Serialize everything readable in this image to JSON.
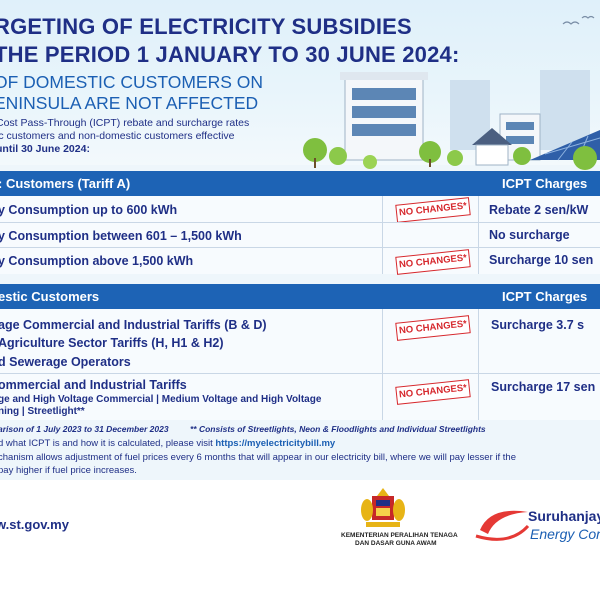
{
  "header": {
    "title_line1": "RGETING OF ELECTRICITY SUBSIDIES",
    "title_line2": "THE PERIOD 1 JANUARY TO 30 JUNE 2024:",
    "subtitle_line1": "OF DOMESTIC CUSTOMERS ON",
    "subtitle_line2": "ENINSULA ARE NOT AFFECTED",
    "intro_line1": "Cost Pass-Through (ICPT) rebate and surcharge rates",
    "intro_line2": "ic customers and non-domestic customers effective",
    "intro_line3": "until 30 June 2024:"
  },
  "domestic": {
    "header_left": ": Customers (Tariff A)",
    "header_right": "ICPT Charges",
    "rows": [
      {
        "label": "y Consumption up to 600 kWh",
        "stamp": "NO CHANGES*",
        "charge": "Rebate  2 sen/kW"
      },
      {
        "label": "y Consumption between 601 – 1,500 kWh",
        "stamp": "",
        "charge": "No surcharge"
      },
      {
        "label": "y Consumption above 1,500 kWh",
        "stamp": "NO CHANGES*",
        "charge": "Surcharge 10 sen"
      }
    ]
  },
  "nondomestic": {
    "header_left": "estic Customers",
    "header_right": "ICPT Charges",
    "rows": [
      {
        "lines": [
          "age Commercial and Industrial Tariffs (B & D)",
          "Agriculture Sector Tariffs (H, H1 & H2)",
          "d Sewerage Operators"
        ],
        "stamp": "NO CHANGES*",
        "charge": "Surcharge   3.7 s"
      },
      {
        "lines": [
          "ommercial and Industrial Tariffs"
        ],
        "sublines": [
          "ge and High Voltage Commercial | Medium Voltage and High Voltage",
          "ning | Streetlight**"
        ],
        "stamp": "NO CHANGES*",
        "charge": "Surcharge  17 sen"
      }
    ]
  },
  "notes": {
    "n1": "arison of 1 July 2023 to 31 December 2023",
    "n2": "** Consists of Streetlights, Neon & Floodlights and Individual Streetlights",
    "info1_prefix": "d what ICPT is and how it is calculated, please visit ",
    "info1_link": "https://myelectricitybill.my",
    "info2": "chanism allows adjustment of fuel prices every 6 months that will appear in our electricity bill, where we will pay lesser if the",
    "info3": "pay higher if fuel price increases."
  },
  "footer": {
    "website": "w.st.gov.my",
    "ministry_line1": "KEMENTERIAN PERALIHAN TENAGA",
    "ministry_line2": "DAN DASAR GUNA AWAM",
    "agency_line1": "Suruhanjaya",
    "agency_line2": "Energy Com"
  },
  "colors": {
    "navy": "#1f2f86",
    "band": "#1d63b5",
    "stamp": "#d6282d"
  }
}
